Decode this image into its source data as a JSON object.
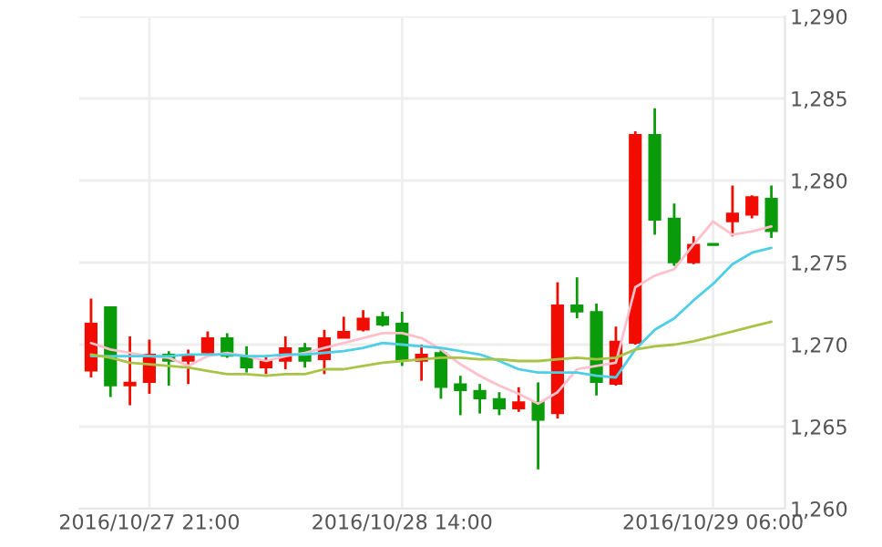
{
  "chart_data": {
    "type": "candlestick",
    "categories": [
      null,
      null,
      null,
      "2016/10/27 21:00",
      null,
      null,
      null,
      null,
      null,
      null,
      null,
      null,
      null,
      null,
      null,
      null,
      "2016/10/28 14:00",
      null,
      null,
      null,
      null,
      null,
      null,
      null,
      null,
      null,
      null,
      null,
      null,
      null,
      null,
      null,
      "2016/10/29 06:00",
      null,
      null,
      null
    ],
    "ohlc": [
      [
        1268.4,
        1272.8,
        1268.0,
        1271.3
      ],
      [
        1272.3,
        1272.3,
        1266.8,
        1267.5
      ],
      [
        1267.5,
        1270.5,
        1266.3,
        1267.7
      ],
      [
        1267.7,
        1270.3,
        1267.0,
        1269.4
      ],
      [
        1269.4,
        1269.6,
        1267.5,
        1269.0
      ],
      [
        1269.0,
        1269.7,
        1267.6,
        1269.4
      ],
      [
        1269.5,
        1270.8,
        1269.4,
        1270.4
      ],
      [
        1270.4,
        1270.7,
        1269.2,
        1269.3
      ],
      [
        1269.3,
        1269.9,
        1268.3,
        1268.6
      ],
      [
        1268.6,
        1269.3,
        1268.2,
        1269.0
      ],
      [
        1269.0,
        1270.5,
        1268.5,
        1269.8
      ],
      [
        1269.8,
        1270.1,
        1268.6,
        1269.0
      ],
      [
        1269.1,
        1270.9,
        1268.2,
        1270.4
      ],
      [
        1270.4,
        1271.7,
        1270.4,
        1270.8
      ],
      [
        1270.9,
        1272.1,
        1270.8,
        1271.6
      ],
      [
        1271.7,
        1272.0,
        1271.1,
        1271.2
      ],
      [
        1271.3,
        1272.0,
        1268.7,
        1269.0
      ],
      [
        1269.0,
        1270.0,
        1267.8,
        1269.4
      ],
      [
        1269.5,
        1269.8,
        1266.7,
        1267.4
      ],
      [
        1267.6,
        1268.1,
        1265.7,
        1267.2
      ],
      [
        1267.2,
        1267.6,
        1265.8,
        1266.7
      ],
      [
        1266.7,
        1267.1,
        1265.7,
        1266.1
      ],
      [
        1266.1,
        1267.4,
        1265.9,
        1266.5
      ],
      [
        1266.5,
        1267.7,
        1262.4,
        1265.4
      ],
      [
        1265.8,
        1273.8,
        1265.5,
        1272.4
      ],
      [
        1272.4,
        1274.1,
        1271.6,
        1272.0
      ],
      [
        1272.0,
        1272.5,
        1266.9,
        1267.7
      ],
      [
        1267.6,
        1271.1,
        1267.5,
        1270.2
      ],
      [
        1270.1,
        1283.0,
        1270.0,
        1282.8
      ],
      [
        1282.8,
        1284.4,
        1276.7,
        1277.6
      ],
      [
        1277.7,
        1278.6,
        1274.8,
        1275.0
      ],
      [
        1275.0,
        1276.6,
        1274.9,
        1276.1
      ],
      [
        1276.1,
        1276.1,
        1276.1,
        1276.1
      ],
      [
        1277.5,
        1279.7,
        1276.6,
        1278.0
      ],
      [
        1277.9,
        1279.1,
        1277.7,
        1279.0
      ],
      [
        1278.9,
        1279.7,
        1276.5,
        1276.9
      ]
    ],
    "colors": [
      "#f20c00",
      "#0a9b0a",
      "#f20c00",
      "#f20c00",
      "#0a9b0a",
      "#f20c00",
      "#f20c00",
      "#0a9b0a",
      "#0a9b0a",
      "#f20c00",
      "#f20c00",
      "#0a9b0a",
      "#f20c00",
      "#f20c00",
      "#f20c00",
      "#0a9b0a",
      "#0a9b0a",
      "#f20c00",
      "#0a9b0a",
      "#0a9b0a",
      "#0a9b0a",
      "#0a9b0a",
      "#f20c00",
      "#0a9b0a",
      "#f20c00",
      "#0a9b0a",
      "#0a9b0a",
      "#f20c00",
      "#f20c00",
      "#0a9b0a",
      "#0a9b0a",
      "#f20c00",
      "#0a9b0a",
      "#f20c00",
      "#f20c00",
      "#0a9b0a"
    ],
    "series": [
      {
        "type": "line",
        "color": "#ffc0cb",
        "values": [
          1270.1,
          1269.7,
          1269.5,
          1269.3,
          1269.2,
          1268.7,
          1269.3,
          1269.5,
          1269.3,
          1269.0,
          1269.3,
          1269.5,
          1269.8,
          1270.1,
          1270.4,
          1270.7,
          1270.7,
          1270.4,
          1269.7,
          1268.8,
          1268.1,
          1267.5,
          1267.0,
          1266.4,
          1267.1,
          1268.5,
          1268.7,
          1268.9,
          1273.5,
          1274.2,
          1274.6,
          1276.1,
          1277.5,
          1276.7,
          1276.9,
          1277.2
        ]
      },
      {
        "type": "line",
        "color": "#4dcfe6",
        "values": [
          1269.3,
          1269.3,
          1269.3,
          1269.3,
          1269.3,
          1269.4,
          1269.4,
          1269.4,
          1269.3,
          1269.3,
          1269.4,
          1269.4,
          1269.5,
          1269.6,
          1269.8,
          1270.1,
          1270.0,
          1269.9,
          1269.8,
          1269.6,
          1269.4,
          1269.0,
          1268.5,
          1268.3,
          1268.3,
          1268.3,
          1268.1,
          1268.0,
          1269.7,
          1270.9,
          1271.6,
          1272.7,
          1273.7,
          1274.9,
          1275.6,
          1275.9
        ]
      },
      {
        "type": "line",
        "color": "#a8c446",
        "values": [
          1269.4,
          1269.2,
          1268.9,
          1268.8,
          1268.7,
          1268.6,
          1268.4,
          1268.2,
          1268.2,
          1268.1,
          1268.2,
          1268.2,
          1268.5,
          1268.5,
          1268.7,
          1268.9,
          1269.0,
          1269.1,
          1269.2,
          1269.2,
          1269.1,
          1269.1,
          1269.0,
          1269.0,
          1269.1,
          1269.2,
          1269.1,
          1269.2,
          1269.7,
          1269.9,
          1270.0,
          1270.2,
          1270.5,
          1270.8,
          1271.1,
          1271.4
        ]
      }
    ],
    "ylim": [
      1260,
      1290
    ],
    "yticks": [
      {
        "value": 1260,
        "label": "1,260"
      },
      {
        "value": 1265,
        "label": "1,265"
      },
      {
        "value": 1270,
        "label": "1,270"
      },
      {
        "value": 1275,
        "label": "1,275"
      },
      {
        "value": 1280,
        "label": "1,280"
      },
      {
        "value": 1285,
        "label": "1,285"
      },
      {
        "value": 1290,
        "label": "1,290"
      }
    ],
    "grid": true
  }
}
